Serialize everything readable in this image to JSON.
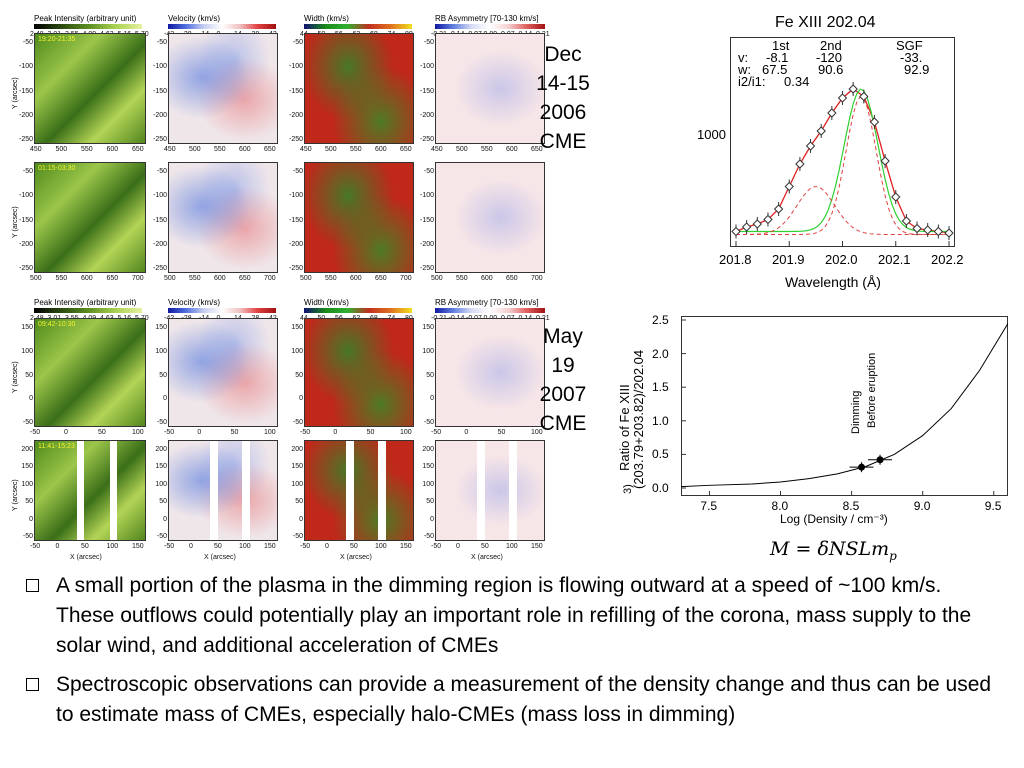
{
  "panels": {
    "titles": [
      "Peak Intensity (arbitrary unit)",
      "Velocity (km/s)",
      "Width (km/s)",
      "RB Asymmetry [70-130 km/s]"
    ],
    "cbar_ticks": [
      [
        "2.48",
        "3.01",
        "3.55",
        "4.09",
        "4.63",
        "5.16",
        "5.70"
      ],
      [
        "-42",
        "-28",
        "-14",
        "0",
        "14",
        "28",
        "42"
      ],
      [
        "44",
        "50",
        "56",
        "62",
        "68",
        "74",
        "80"
      ],
      [
        "-0.21",
        "-0.14",
        "-0.07",
        "0.00",
        "0.07",
        "0.14",
        "0.21"
      ]
    ],
    "ylabel": "Y (arcsec)",
    "xlabel": "X (arcsec)",
    "dec": {
      "stamp1": "19:20-21:35",
      "stamp2": "01:15-03:30",
      "row1_yticks": [
        "-50",
        "-100",
        "-150",
        "-200",
        "-250"
      ],
      "row1_xticks": [
        "450",
        "500",
        "550",
        "600",
        "650"
      ],
      "row2_yticks": [
        "-50",
        "-100",
        "-150",
        "-200",
        "-250"
      ],
      "row2_xticks": [
        "500",
        "550",
        "600",
        "650",
        "700"
      ]
    },
    "may": {
      "stamp1": "09:42-10:30",
      "stamp2": "11:41-15:23",
      "row1_yticks": [
        "150",
        "100",
        "50",
        "0",
        "-50"
      ],
      "row1_xticks": [
        "-50",
        "0",
        "50",
        "100"
      ],
      "row2_yticks": [
        "200",
        "150",
        "100",
        "50",
        "0",
        "-50"
      ],
      "row2_xticks": [
        "-50",
        "0",
        "50",
        "100",
        "150"
      ]
    }
  },
  "events": {
    "dec": [
      "Dec",
      "14-15",
      "2006",
      "CME"
    ],
    "may": [
      "May",
      "19",
      "2007",
      "CME"
    ]
  },
  "spectrum": {
    "title": "Fe XIII 202.04",
    "col_heads": [
      "1st",
      "2nd",
      "SGF"
    ],
    "row_v": [
      "v:",
      "-8.1",
      "-120",
      "-33."
    ],
    "row_w": [
      "w:",
      "67.5",
      "90.6",
      "92.9"
    ],
    "row_ratio": [
      "i2/i1:",
      "0.34"
    ],
    "ytick": "1000",
    "xticks": [
      "201.8",
      "201.9",
      "202.0",
      "202.1",
      "202.2"
    ],
    "xlabel": "Wavelength (Å)"
  },
  "density": {
    "yticks": [
      "0.0",
      "0.5",
      "1.0",
      "1.5",
      "2.0",
      "2.5"
    ],
    "xticks": [
      "7.5",
      "8.0",
      "8.5",
      "9.0",
      "9.5"
    ],
    "ylabel1": "Ratio of Fe XIII",
    "ylabel2": "(203.79+203.82)/202.04",
    "xlabel": "Log (Density / cm⁻³)",
    "ann1": "Dimming",
    "ann2": "Before eruption",
    "corner": "3)"
  },
  "formula": "M = δNSLm",
  "formula_sub": "p",
  "bullets": [
    "A small portion of the plasma in the dimming region is flowing outward at a speed of ~100 km/s. These outflows could potentially play an important role in refilling of the corona, mass supply to the solar wind, and additional acceleration of CMEs",
    "Spectroscopic observations can provide a measurement of the density change and thus can be used to estimate mass of CMEs, especially halo-CMEs (mass loss in dimming)"
  ],
  "chart_data": [
    {
      "type": "line",
      "title": "Fe XIII 202.04",
      "xlabel": "Wavelength (Å)",
      "xlim": [
        201.8,
        202.2
      ],
      "series": [
        {
          "x": [
            201.8,
            201.82,
            201.84,
            201.86,
            201.88,
            201.9,
            201.92,
            201.94,
            201.96,
            201.98,
            202.0,
            202.02,
            202.04,
            202.06,
            202.08,
            202.1,
            202.12,
            202.14,
            202.16,
            202.18,
            202.2
          ],
          "values": [
            0.05,
            0.08,
            0.1,
            0.13,
            0.2,
            0.35,
            0.5,
            0.62,
            0.72,
            0.84,
            0.94,
            1.0,
            0.95,
            0.78,
            0.52,
            0.28,
            0.12,
            0.07,
            0.06,
            0.05,
            0.04
          ]
        }
      ]
    },
    {
      "type": "line",
      "xlabel": "Log (Density / cm⁻³)",
      "ylabel": "Ratio of Fe XIII (203.79+203.82)/202.04",
      "xlim": [
        7.3,
        9.6
      ],
      "ylim": [
        0.0,
        2.5
      ],
      "series": [
        {
          "x": [
            7.3,
            7.5,
            7.8,
            8.0,
            8.2,
            8.4,
            8.6,
            8.8,
            9.0,
            9.2,
            9.4,
            9.6
          ],
          "values": [
            0.02,
            0.04,
            0.06,
            0.09,
            0.14,
            0.21,
            0.32,
            0.5,
            0.78,
            1.18,
            1.75,
            2.45
          ]
        }
      ],
      "points": [
        {
          "label": "Dimming",
          "x": 8.57,
          "y": 0.31
        },
        {
          "label": "Before eruption",
          "x": 8.7,
          "y": 0.42
        }
      ]
    }
  ]
}
